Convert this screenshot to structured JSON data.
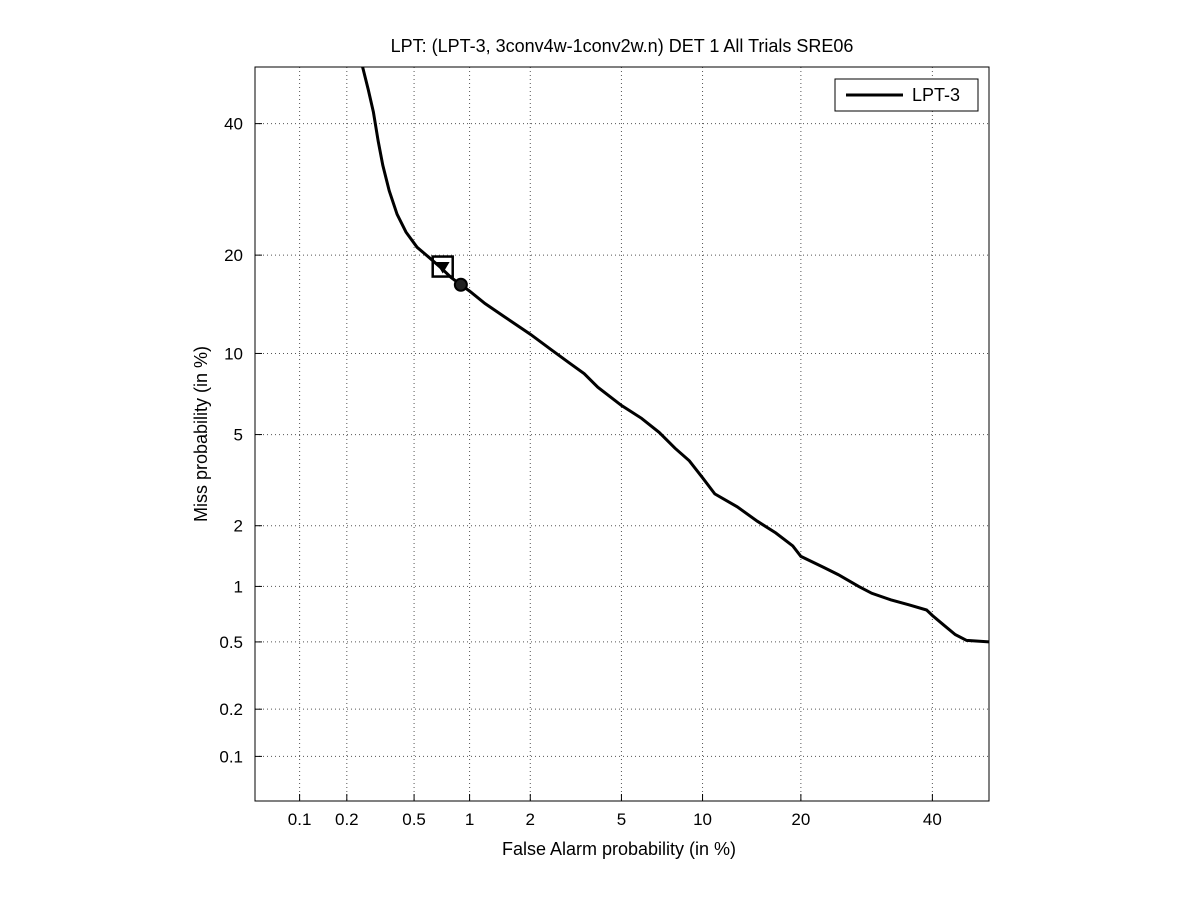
{
  "chart_data": {
    "type": "line",
    "title": "LPT: (LPT-3, 3conv4w-1conv2w.n) DET 1 All Trials SRE06",
    "xlabel": "False Alarm probability (in %)",
    "ylabel": "Miss probability (in %)",
    "scale": "normal-deviate (probit) on both axes",
    "grid": true,
    "legend_position": "top-right",
    "xlim": [
      0.05,
      50
    ],
    "ylim": [
      0.05,
      50
    ],
    "x_ticks": [
      {
        "value": 0.1,
        "label": "0.1"
      },
      {
        "value": 0.2,
        "label": "0.2"
      },
      {
        "value": 0.5,
        "label": "0.5"
      },
      {
        "value": 1,
        "label": "1"
      },
      {
        "value": 2,
        "label": "2"
      },
      {
        "value": 5,
        "label": "5"
      },
      {
        "value": 10,
        "label": "10"
      },
      {
        "value": 20,
        "label": "20"
      },
      {
        "value": 40,
        "label": "40"
      }
    ],
    "y_ticks": [
      {
        "value": 0.1,
        "label": "0.1"
      },
      {
        "value": 0.2,
        "label": "0.2"
      },
      {
        "value": 0.5,
        "label": "0.5"
      },
      {
        "value": 1,
        "label": "1"
      },
      {
        "value": 2,
        "label": "2"
      },
      {
        "value": 5,
        "label": "5"
      },
      {
        "value": 10,
        "label": "10"
      },
      {
        "value": 20,
        "label": "20"
      },
      {
        "value": 40,
        "label": "40"
      }
    ],
    "series": [
      {
        "name": "LPT-3",
        "color": "#000000",
        "points": [
          [
            0.25,
            50
          ],
          [
            0.27,
            46
          ],
          [
            0.29,
            42
          ],
          [
            0.31,
            37
          ],
          [
            0.33,
            33
          ],
          [
            0.36,
            29
          ],
          [
            0.4,
            25.5
          ],
          [
            0.45,
            23
          ],
          [
            0.52,
            21
          ],
          [
            0.6,
            19.8
          ],
          [
            0.7,
            18.5
          ],
          [
            0.8,
            17.3
          ],
          [
            0.9,
            16.5
          ],
          [
            1.0,
            15.8
          ],
          [
            1.2,
            14.5
          ],
          [
            1.5,
            13.2
          ],
          [
            2.0,
            11.6
          ],
          [
            2.5,
            10.3
          ],
          [
            3.0,
            9.3
          ],
          [
            3.5,
            8.5
          ],
          [
            4.0,
            7.6
          ],
          [
            5.0,
            6.5
          ],
          [
            6.0,
            5.8
          ],
          [
            7.0,
            5.1
          ],
          [
            8.0,
            4.4
          ],
          [
            9.0,
            3.9
          ],
          [
            10,
            3.3
          ],
          [
            11,
            2.8
          ],
          [
            13,
            2.45
          ],
          [
            15,
            2.1
          ],
          [
            17,
            1.85
          ],
          [
            19,
            1.6
          ],
          [
            20,
            1.42
          ],
          [
            23,
            1.25
          ],
          [
            25,
            1.15
          ],
          [
            28,
            1.0
          ],
          [
            30,
            0.92
          ],
          [
            33,
            0.85
          ],
          [
            36,
            0.8
          ],
          [
            39,
            0.75
          ],
          [
            40,
            0.7
          ],
          [
            42,
            0.62
          ],
          [
            44,
            0.55
          ],
          [
            46,
            0.51
          ],
          [
            50,
            0.5
          ]
        ]
      }
    ],
    "markers": [
      {
        "shape": "square",
        "x": 0.72,
        "y": 18.6
      },
      {
        "shape": "triangle-down",
        "x": 0.72,
        "y": 18.6
      },
      {
        "shape": "circle",
        "x": 0.9,
        "y": 16.5
      }
    ]
  }
}
